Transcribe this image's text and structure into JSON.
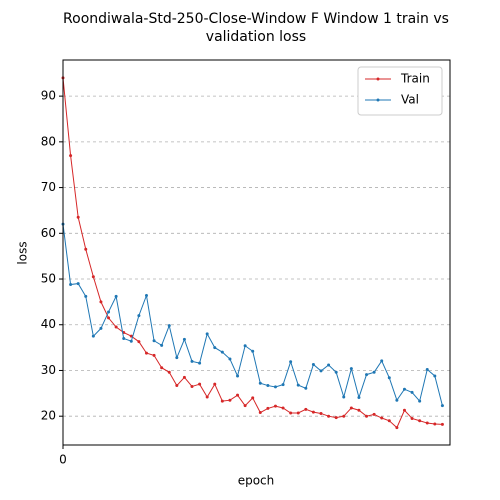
{
  "chart_data": {
    "type": "line",
    "title": [
      "Roondiwala-Std-250-Close-Window F Window 1 train vs",
      "validation loss"
    ],
    "x_label": "epoch",
    "y_label": "loss",
    "x": [
      0,
      1,
      2,
      3,
      4,
      5,
      6,
      7,
      8,
      9,
      10,
      11,
      12,
      13,
      14,
      15,
      16,
      17,
      18,
      19,
      20,
      21,
      22,
      23,
      24,
      25,
      26,
      27,
      28,
      29,
      30,
      31,
      32,
      33,
      34,
      35,
      36,
      37,
      38,
      39,
      40,
      41,
      42,
      43,
      44,
      45,
      46,
      47,
      48,
      49,
      50
    ],
    "series": [
      {
        "name": "Train",
        "color": "#d62728",
        "values": [
          94,
          77,
          63.5,
          56.5,
          50.5,
          45,
          41.5,
          39.5,
          38.3,
          37.5,
          36.3,
          33.8,
          33.3,
          30.6,
          29.6,
          26.7,
          28.5,
          26.5,
          27,
          24.2,
          27,
          23.3,
          23.5,
          24.6,
          22.3,
          24,
          20.8,
          21.7,
          22.2,
          21.8,
          20.7,
          20.7,
          21.5,
          20.9,
          20.6,
          20,
          19.7,
          20,
          21.8,
          21.3,
          20,
          20.4,
          19.6,
          19,
          17.5,
          21.3,
          19.5,
          19,
          18.5,
          18.3,
          18.2
        ]
      },
      {
        "name": "Val",
        "color": "#1f77b4",
        "values": [
          62,
          48.8,
          49,
          46.2,
          37.5,
          39.2,
          42.8,
          46.2,
          37,
          36.4,
          42,
          46.4,
          36.5,
          35.5,
          39.8,
          32.8,
          36.8,
          32,
          31.6,
          38,
          35,
          34,
          32.5,
          28.8,
          35.4,
          34.2,
          27.2,
          26.7,
          26.4,
          26.9,
          31.9,
          26.8,
          26.1,
          31.3,
          29.9,
          31.2,
          29.6,
          24.2,
          30.4,
          24.1,
          29.1,
          29.6,
          32.1,
          28.4,
          23.5,
          25.9,
          25.2,
          23.3,
          30.2,
          28.8,
          22.3
        ]
      }
    ],
    "xlim": [
      0,
      51
    ],
    "xticks": [
      0
    ],
    "ylim": [
      13.7,
      97.9
    ],
    "yticks": [
      20,
      30,
      40,
      50,
      60,
      70,
      80,
      90
    ],
    "grid": "y",
    "legend": "upper right"
  }
}
